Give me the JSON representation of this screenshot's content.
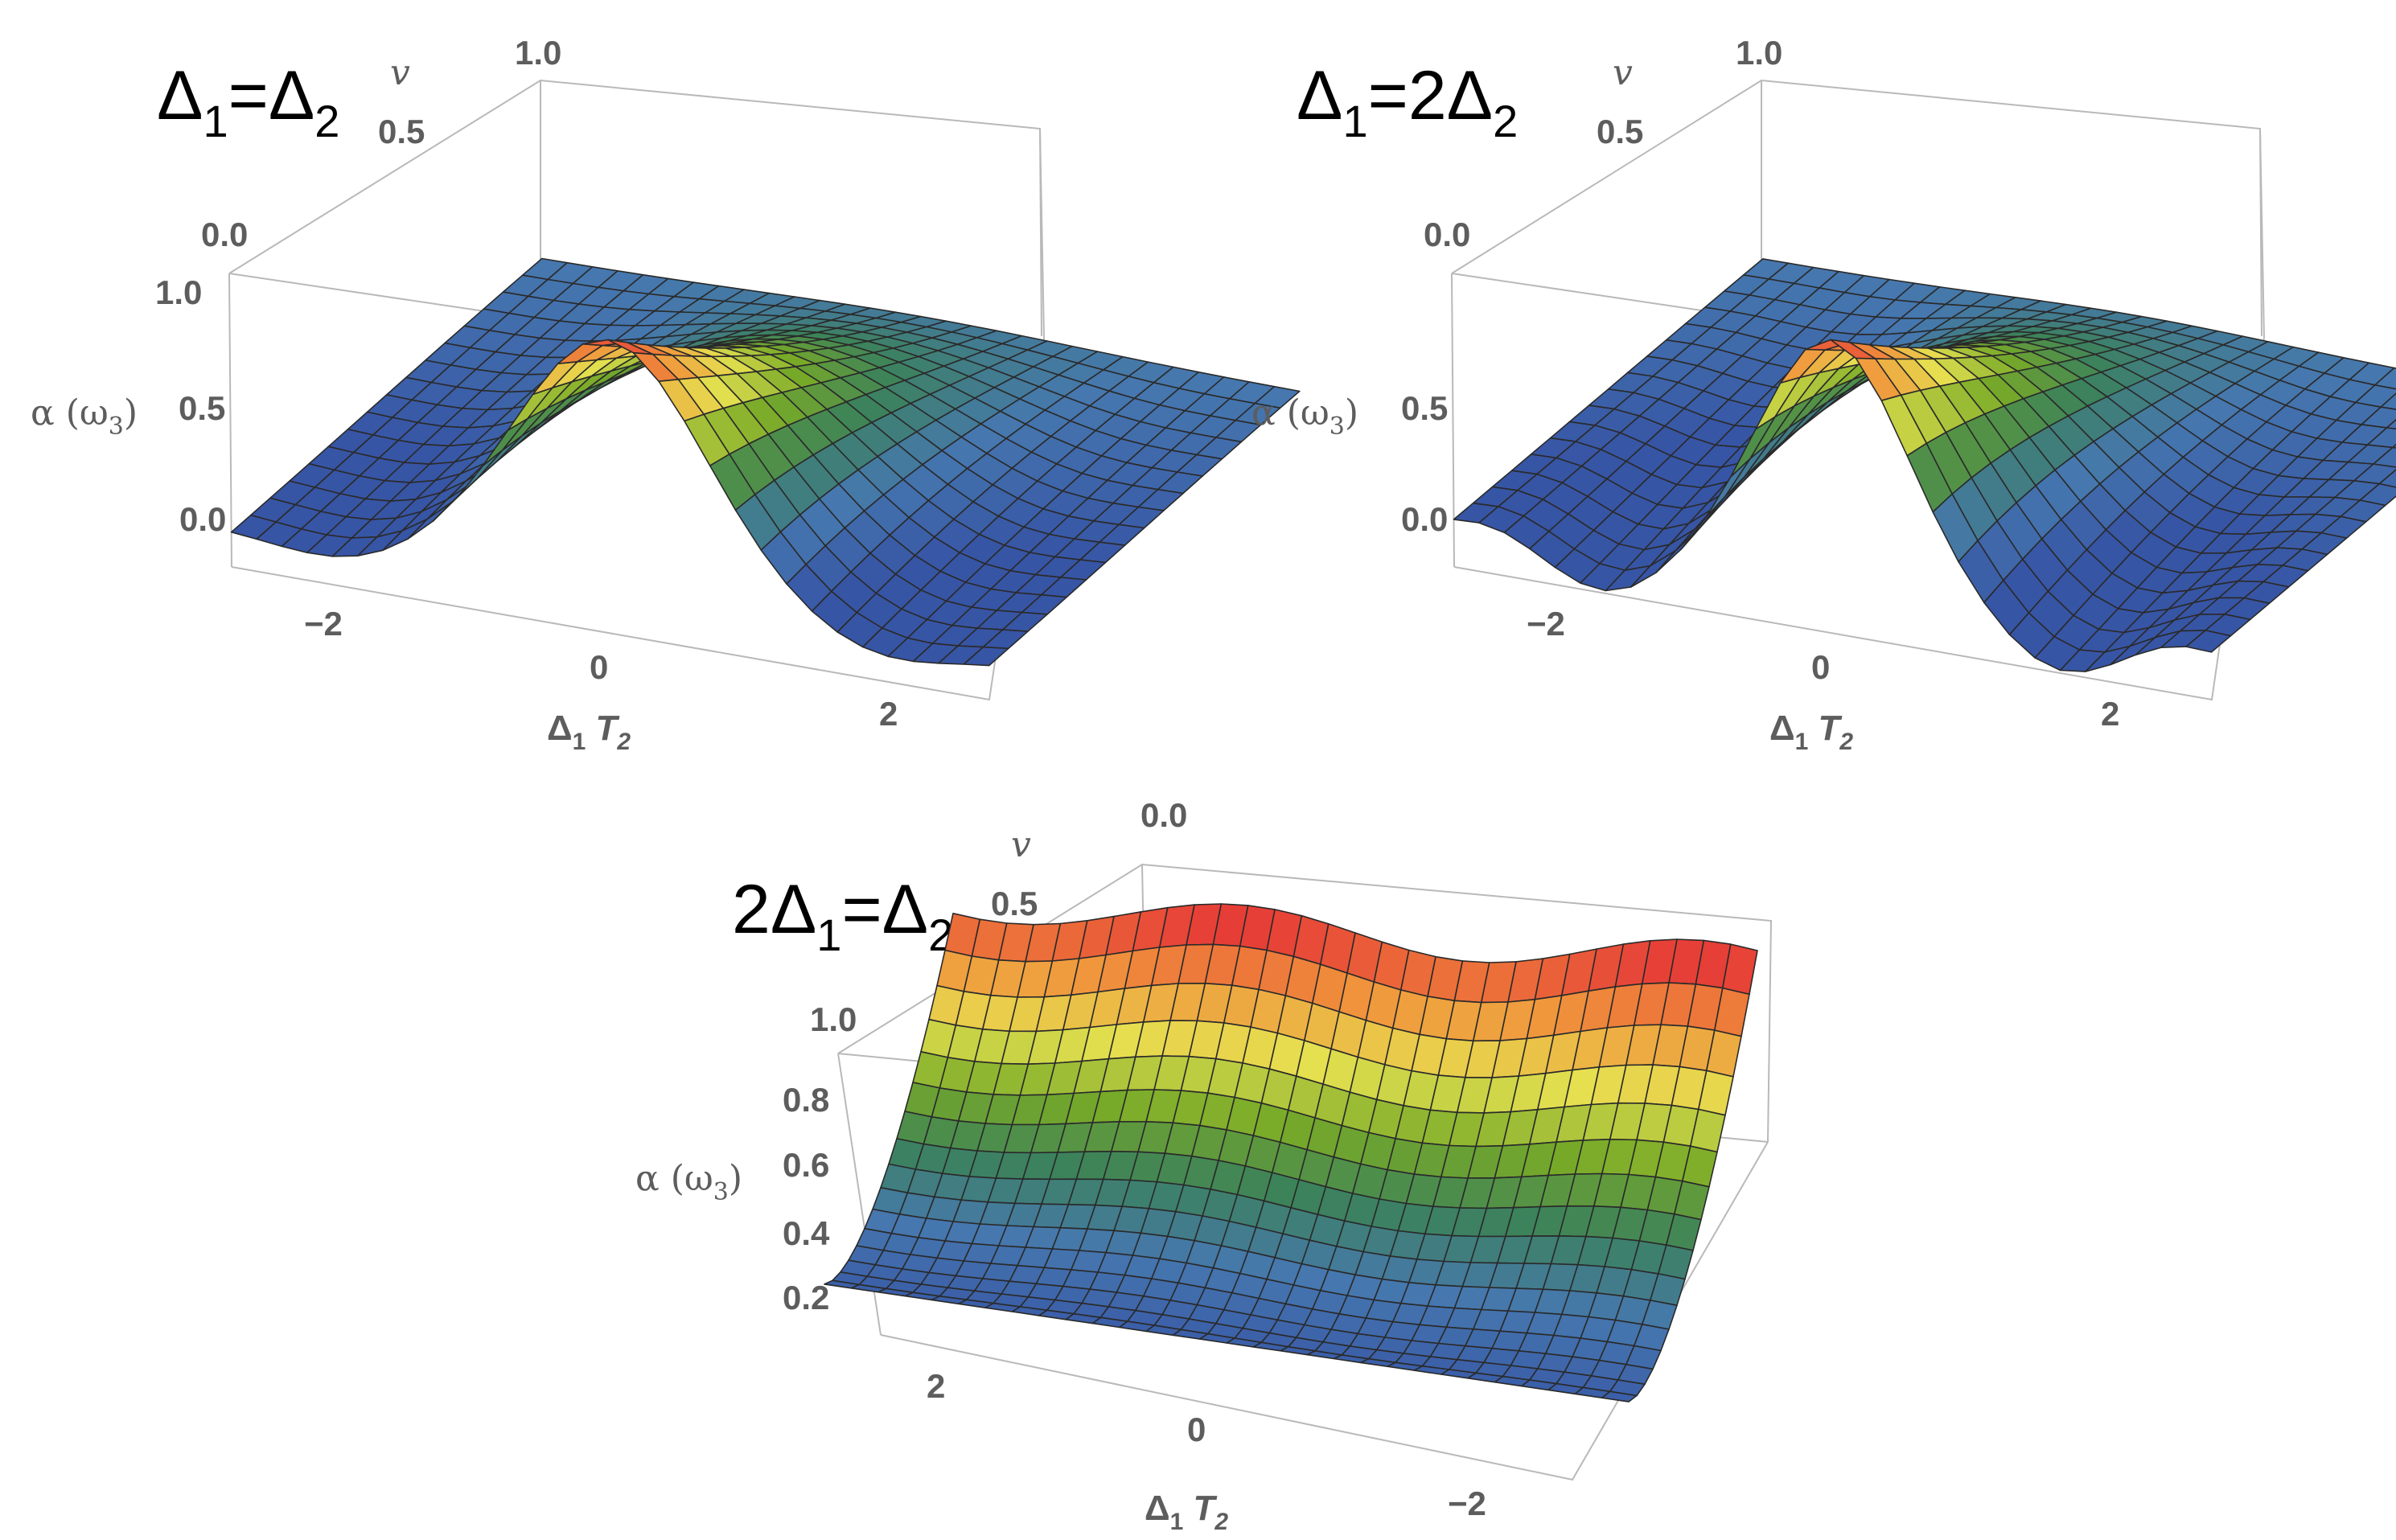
{
  "panels": [
    {
      "id": "panel-1",
      "title_parts": [
        "Δ",
        "1",
        "=Δ",
        "2"
      ],
      "xlabel_parts": [
        "Δ",
        "1",
        " T",
        "2"
      ],
      "ylabel": "v",
      "zlabel_parts": [
        "α (ω",
        "3",
        ")"
      ],
      "xticks": [
        "−2",
        "0",
        "2"
      ],
      "yticks": [
        "0.0",
        "0.5",
        "1.0"
      ],
      "zticks": [
        "0.0",
        "0.5",
        "1.0"
      ]
    },
    {
      "id": "panel-2",
      "title_parts": [
        "Δ",
        "1",
        "=2Δ",
        "2"
      ],
      "xlabel_parts": [
        "Δ",
        "1",
        " T",
        "2"
      ],
      "ylabel": "v",
      "zlabel_parts": [
        "α (ω",
        "3",
        ")"
      ],
      "xticks": [
        "−2",
        "0",
        "2"
      ],
      "yticks": [
        "0.0",
        "0.5",
        "1.0"
      ],
      "zticks": [
        "0.0",
        "0.5"
      ]
    },
    {
      "id": "panel-3",
      "title_parts": [
        "2Δ",
        "1",
        "=Δ",
        "2"
      ],
      "xlabel_parts": [
        "Δ",
        "1",
        " T",
        "2"
      ],
      "ylabel": "v",
      "zlabel_parts": [
        "α (ω",
        "3",
        ")"
      ],
      "xticks": [
        "2",
        "0",
        "−2"
      ],
      "yticks": [
        "0.0",
        "0.5",
        "1.0"
      ],
      "zticks": [
        "0.2",
        "0.4",
        "0.6",
        "0.8"
      ]
    }
  ],
  "chart_data": [
    {
      "type": "surface",
      "title": "Δ1=Δ2",
      "xlabel": "Δ1 T2",
      "ylabel": "v",
      "zlabel": "α (ω3)",
      "xlim": [
        -2.5,
        2.5
      ],
      "ylim": [
        0,
        1
      ],
      "zlim": [
        -0.15,
        1.0
      ],
      "surface": "peaked ridge near Δ1T2≈0, peak ≈1.0 at small v, decaying with v; flat ≈0.3 at v=1",
      "colormap": "rainbow"
    },
    {
      "type": "surface",
      "title": "Δ1=2Δ2",
      "xlabel": "Δ1 T2",
      "ylabel": "v",
      "zlabel": "α (ω3)",
      "xlim": [
        -2.5,
        2.5
      ],
      "ylim": [
        0,
        1
      ],
      "zlim": [
        -0.15,
        1.0
      ],
      "surface": "narrower ridge near Δ1T2≈0 with side lobes, peak ≈1.0 at small v; flat ≈0.3 at v=1",
      "colormap": "rainbow"
    },
    {
      "type": "surface",
      "title": "2Δ1=Δ2",
      "xlabel": "Δ1 T2",
      "ylabel": "v",
      "zlabel": "α (ω3)",
      "xlim": [
        -2.5,
        2.5
      ],
      "ylim": [
        0,
        1
      ],
      "zlim": [
        0.1,
        1.0
      ],
      "surface": "monotonic rise from ≈0.15 at v=1 to ≈1.0 at v=0, nearly independent of Δ1T2",
      "colormap": "rainbow"
    }
  ]
}
